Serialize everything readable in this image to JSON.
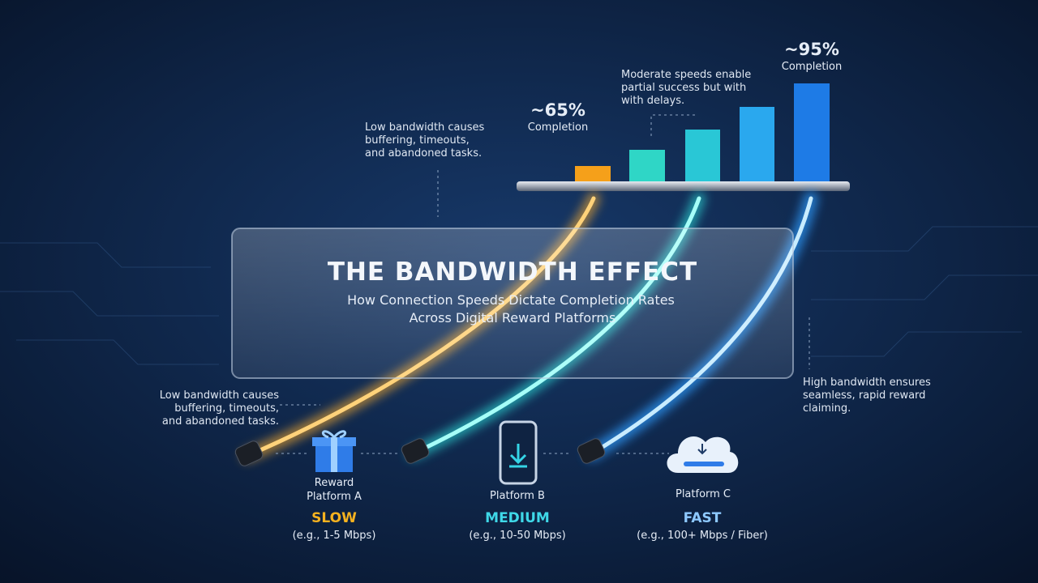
{
  "title": "THE BANDWIDTH EFFECT",
  "subtitle": [
    "How Connection Speeds Dictate Completion Rates",
    "Across Digital Reward Platforms"
  ],
  "annotations": {
    "low_top": [
      "Low bandwidth causes",
      "buffering, timeouts,",
      "and abandoned tasks."
    ],
    "low_bottom": [
      "Low bandwidth causes",
      "buffering, timeouts,",
      "and abandoned tasks."
    ],
    "moderate": [
      "Moderate speeds enable",
      "partial success but with",
      "with delays."
    ],
    "high": [
      "High bandwidth ensures",
      "seamless, rapid reward",
      "claiming."
    ]
  },
  "bar_labels": [
    {
      "value": "~65%",
      "caption": "Completion"
    },
    {
      "value": "~95%",
      "caption": "Completion"
    }
  ],
  "platforms": [
    {
      "name": [
        "Reward",
        "Platform A"
      ],
      "speed": "SLOW",
      "example": "(e.g., 1-5 Mbps)"
    },
    {
      "name": [
        "Platform B"
      ],
      "speed": "MEDIUM",
      "example": "(e.g., 10-50 Mbps)"
    },
    {
      "name": [
        "Platform C"
      ],
      "speed": "FAST",
      "example": "(e.g., 100+ Mbps / Fiber)"
    }
  ]
}
